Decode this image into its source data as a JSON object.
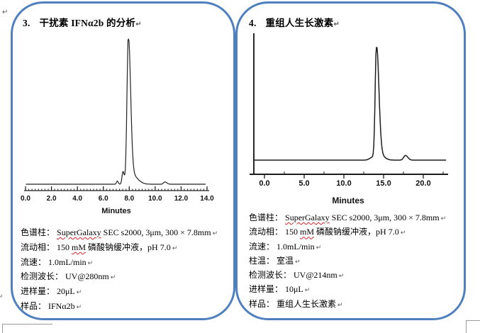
{
  "page": {
    "background": "#ffffff",
    "panel_border_color": "#4e7fbe",
    "spellcheck_underline_color": "#d8232a",
    "return_mark": "↵"
  },
  "panels": [
    {
      "title": {
        "number": "3.",
        "text": "干扰素 IFNα2b 的分析",
        "mark": "↵"
      },
      "conditions": [
        {
          "segments": [
            {
              "t": "色谱柱： "
            },
            {
              "t": "SuperGalaxy",
              "wavy": true
            },
            {
              "t": " SEC s2000, 3μm, 300 × 7.8mm"
            }
          ],
          "mark": "↵"
        },
        {
          "segments": [
            {
              "t": "流动相： 150 "
            },
            {
              "t": "mM",
              "wavy": true
            },
            {
              "t": " 磷酸钠缓冲液，pH 7.0"
            }
          ],
          "mark": "↵"
        },
        {
          "segments": [
            {
              "t": "流速： 1.0mL/min"
            }
          ],
          "mark": "↵"
        },
        {
          "segments": [
            {
              "t": "检测波长： UV@280nm"
            }
          ],
          "mark": "↵"
        },
        {
          "segments": [
            {
              "t": "进样量： 20μL"
            }
          ],
          "mark": "↵"
        },
        {
          "segments": [
            {
              "t": "样品： IFNα2b"
            }
          ],
          "mark": "↵"
        }
      ],
      "chart_data": {
        "type": "line",
        "title": "",
        "xlabel": "Minutes",
        "ylabel": "",
        "xlim": [
          0,
          14.0
        ],
        "x_ticks": [
          0,
          2,
          4,
          6,
          8,
          10,
          12,
          14
        ],
        "tick_labels": [
          "0.0",
          "2.0",
          "4.0",
          "6.0",
          "8.0",
          "10.0",
          "12.0",
          "14.0"
        ],
        "minor_tick_step": 0.25,
        "grid": "off",
        "legend": "none",
        "line_color": "#222222",
        "axis_color": "#222222",
        "peaks": [
          {
            "rt": 7.08,
            "height": 0.022,
            "sigma_l": 0.06,
            "sigma_r": 0.07
          },
          {
            "rt": 7.52,
            "height": 0.088,
            "sigma_l": 0.075,
            "sigma_r": 0.095
          },
          {
            "rt": 7.93,
            "height": 1.0,
            "sigma_l": 0.105,
            "sigma_r": 0.17
          },
          {
            "rt": 8.15,
            "height": 0.07,
            "sigma_l": 0.15,
            "sigma_r": 0.45
          },
          {
            "rt": 10.75,
            "height": 0.016,
            "sigma_l": 0.1,
            "sigma_r": 0.15
          }
        ]
      }
    },
    {
      "title": {
        "number": "4.",
        "text": "重组人生长激素",
        "mark": "↵"
      },
      "conditions": [
        {
          "segments": [
            {
              "t": "色谱柱： "
            },
            {
              "t": "SuperGalaxy",
              "wavy": true
            },
            {
              "t": " SEC s2000, 3μm, 300 × 7.8mm"
            }
          ],
          "mark": "↵"
        },
        {
          "segments": [
            {
              "t": "流动相： 150 "
            },
            {
              "t": "mM",
              "wavy": true
            },
            {
              "t": " 磷酸钠缓冲液，pH 7.0"
            }
          ],
          "mark": "↵"
        },
        {
          "segments": [
            {
              "t": "流速： 1.0mL/min"
            }
          ],
          "mark": "↵"
        },
        {
          "segments": [
            {
              "t": "柱温： 室温"
            }
          ],
          "mark": "↵"
        },
        {
          "segments": [
            {
              "t": "检测波长： UV@214nm"
            }
          ],
          "mark": "↵"
        },
        {
          "segments": [
            {
              "t": "进样量： 10μL"
            }
          ],
          "mark": "↵"
        },
        {
          "segments": [
            {
              "t": "样品： 重组人生长激素"
            }
          ],
          "mark": "↵"
        }
      ],
      "chart_data": {
        "type": "line",
        "title": "",
        "xlabel": "Minutes",
        "ylabel": "",
        "xlim": [
          -1.9,
          23.1
        ],
        "x_ticks": [
          0,
          5,
          10,
          15,
          20
        ],
        "tick_labels": [
          "0.0",
          "5.0",
          "10.0",
          "15.0",
          "20.0"
        ],
        "minor_tick_step": 2.5,
        "grid": "off",
        "legend": "none",
        "line_color": "#1d1d1d",
        "axis_color": "#1d1d1d",
        "peaks": [
          {
            "rt": 13.6,
            "height": 0.025,
            "sigma_l": 0.35,
            "sigma_r": 0.15
          },
          {
            "rt": 14.1,
            "height": 1.0,
            "sigma_l": 0.16,
            "sigma_r": 0.3
          },
          {
            "rt": 14.35,
            "height": 0.06,
            "sigma_l": 0.2,
            "sigma_r": 0.6
          },
          {
            "rt": 17.75,
            "height": 0.042,
            "sigma_l": 0.22,
            "sigma_r": 0.3
          }
        ]
      }
    }
  ]
}
